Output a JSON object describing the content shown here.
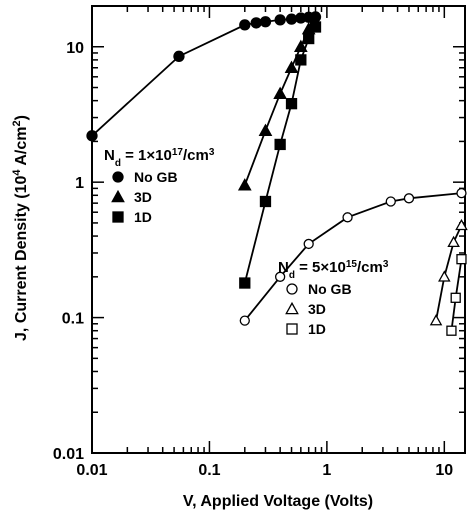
{
  "chart_data": {
    "type": "line",
    "xlabel": "V, Applied Voltage (Volts)",
    "ylabel_main": "J, Current Density (10",
    "ylabel_sup": "4",
    "ylabel_unit": " A/cm",
    "ylabel_sup2": "2",
    "ylabel_close": ")",
    "x_scale": "log",
    "y_scale": "log",
    "xlim": [
      0.01,
      15
    ],
    "ylim": [
      0.01,
      20
    ],
    "x_ticks": [
      {
        "value": 0.01,
        "label": "0.01"
      },
      {
        "value": 0.1,
        "label": "0.1"
      },
      {
        "value": 1,
        "label": "1"
      },
      {
        "value": 10,
        "label": "10"
      }
    ],
    "y_ticks": [
      {
        "value": 0.01,
        "label": "0.01"
      },
      {
        "value": 0.1,
        "label": "0.1"
      },
      {
        "value": 1,
        "label": "1"
      },
      {
        "value": 10,
        "label": "10"
      }
    ],
    "legend_groups": [
      {
        "title_main": "N",
        "title_sub": "d",
        "title_rest": " = 1×10",
        "title_sup": "17",
        "title_unit": "/cm",
        "title_sup2": "3",
        "placement": "middle-left"
      },
      {
        "title_main": "N",
        "title_sub": "d",
        "title_rest": " = 5×10",
        "title_sup": "15",
        "title_unit": "/cm",
        "title_sup2": "3",
        "placement": "lower-right"
      }
    ],
    "series": [
      {
        "name": "No GB",
        "group": 0,
        "marker": "circle",
        "filled": true,
        "points": [
          [
            0.01,
            2.2
          ],
          [
            0.055,
            8.5
          ],
          [
            0.2,
            14.5
          ],
          [
            0.25,
            15.0
          ],
          [
            0.3,
            15.3
          ],
          [
            0.4,
            15.8
          ],
          [
            0.5,
            16.0
          ],
          [
            0.6,
            16.3
          ],
          [
            0.7,
            16.5
          ],
          [
            0.8,
            16.6
          ]
        ]
      },
      {
        "name": "3D",
        "group": 0,
        "marker": "triangle",
        "filled": true,
        "points": [
          [
            0.2,
            0.95
          ],
          [
            0.3,
            2.4
          ],
          [
            0.4,
            4.5
          ],
          [
            0.5,
            7.0
          ],
          [
            0.6,
            10.0
          ],
          [
            0.7,
            13.5
          ]
        ]
      },
      {
        "name": "1D",
        "group": 0,
        "marker": "square",
        "filled": true,
        "points": [
          [
            0.2,
            0.18
          ],
          [
            0.3,
            0.72
          ],
          [
            0.4,
            1.9
          ],
          [
            0.5,
            3.8
          ],
          [
            0.6,
            8.0
          ],
          [
            0.7,
            11.5
          ],
          [
            0.8,
            14.0
          ]
        ]
      },
      {
        "name": "No GB",
        "group": 1,
        "marker": "circle",
        "filled": false,
        "points": [
          [
            0.2,
            0.095
          ],
          [
            0.4,
            0.2
          ],
          [
            0.7,
            0.35
          ],
          [
            1.5,
            0.55
          ],
          [
            3.5,
            0.72
          ],
          [
            5,
            0.76
          ],
          [
            14,
            0.83
          ]
        ]
      },
      {
        "name": "3D",
        "group": 1,
        "marker": "triangle",
        "filled": false,
        "points": [
          [
            8.5,
            0.095
          ],
          [
            10,
            0.2
          ],
          [
            12,
            0.36
          ],
          [
            14,
            0.48
          ]
        ]
      },
      {
        "name": "1D",
        "group": 1,
        "marker": "square",
        "filled": false,
        "points": [
          [
            11.5,
            0.08
          ],
          [
            12.5,
            0.14
          ],
          [
            14,
            0.27
          ]
        ]
      }
    ]
  }
}
